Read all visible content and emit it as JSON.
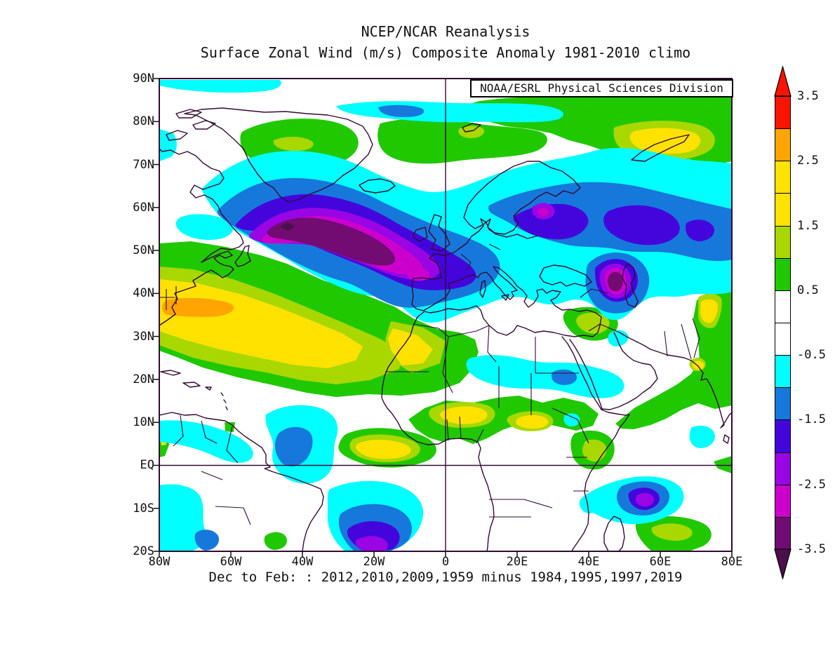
{
  "header": {
    "line1": "NCEP/NCAR Reanalysis",
    "line2": "Surface Zonal Wind (m/s) Composite Anomaly 1981-2010 climo"
  },
  "map": {
    "source_label": "NOAA/ESRL Physical Sciences Division",
    "lat_ticks": [
      "90N",
      "80N",
      "70N",
      "60N",
      "50N",
      "40N",
      "30N",
      "20N",
      "10N",
      "EQ",
      "10S",
      "20S"
    ],
    "lon_ticks": [
      "80W",
      "60W",
      "40W",
      "20W",
      "0",
      "20E",
      "40E",
      "60E",
      "80E"
    ]
  },
  "caption": "Dec to Feb: : 2012,2010,2009,1959 minus 1984,1995,1997,2019",
  "colorbar": {
    "tick_labels": [
      "3.5",
      "2.5",
      "1.5",
      "0.5",
      "-0.5",
      "-1.5",
      "-2.5",
      "-3.5"
    ],
    "segment_colors": [
      "#f81400",
      "#ffa400",
      "#ffe200",
      "#ffe200",
      "#a8d800",
      "#20c800",
      "#ffffff",
      "#ffffff",
      "#00ffff",
      "#1778dc",
      "#4404dc",
      "#9905e5",
      "#cc00cc",
      "#720b72"
    ],
    "arrow_top_color": "#f81400",
    "arrow_bottom_color": "#4b0f4b"
  },
  "palette": {
    "red": "#f81400",
    "orange": "#ffa400",
    "yellow": "#ffe200",
    "yellowgreen": "#a8d800",
    "green": "#20c800",
    "cyan": "#00ffff",
    "blue": "#1778dc",
    "indigo": "#4404dc",
    "violet": "#9905e5",
    "magenta": "#cc00cc",
    "darkpurple": "#720b72",
    "arrowdown": "#4b0f4b",
    "outline": "#320a32"
  },
  "chart_data": {
    "type": "heatmap",
    "projection": "latlon",
    "variable": "Surface Zonal Wind Composite Anomaly",
    "units": "m/s",
    "climatology": "1981-2010",
    "composite_years_plus": [
      2012,
      2010,
      2009,
      1959
    ],
    "composite_years_minus": [
      1984,
      1995,
      1997,
      2019
    ],
    "season": "Dec to Feb",
    "lon_range_deg": [
      -80,
      80
    ],
    "lat_range_deg": [
      -20,
      90
    ],
    "contour_interval": 0.5,
    "labeled_levels": [
      3.5,
      2.5,
      1.5,
      0.5,
      -0.5,
      -1.5,
      -2.5,
      -3.5
    ],
    "key_features": [
      {
        "region": "North Atlantic 45-62N, 55W-0W",
        "value": "-3.5 m/s core, broad negative band extending across Europe into Russia"
      },
      {
        "region": "Caspian region ~42N 50E",
        "value": "-3.0 to -3.5 m/s closed low"
      },
      {
        "region": "Subtropical Atlantic 22-40N, 80W-10W",
        "value": "+1.5 to +2.5 m/s, orange core +2.5 near 34N 77W"
      },
      {
        "region": "NW Africa 25-33N",
        "value": "+1.5 to +2 m/s"
      },
      {
        "region": "Sahel and Gulf of Guinea 0-10N",
        "value": "+1.5 to +2 m/s"
      },
      {
        "region": "South Atlantic ~15S 25W",
        "value": "-2 to -2.5 m/s"
      },
      {
        "region": "Tropical Atlantic ~5N 35W",
        "value": "-1 to -1.5 m/s"
      },
      {
        "region": "Indian Ocean ~8S 57E",
        "value": "-2 to -2.5 m/s"
      },
      {
        "region": "Arctic Russia 75-80N, 50-70E",
        "value": "+1.5 to +2.5 m/s"
      },
      {
        "region": "Greenland interior ~75N 45W",
        "value": "+1 to +1.5 m/s"
      },
      {
        "region": "Sahara/Red Sea band ~20N",
        "value": "-0.5 to -1.5 m/s"
      }
    ]
  }
}
